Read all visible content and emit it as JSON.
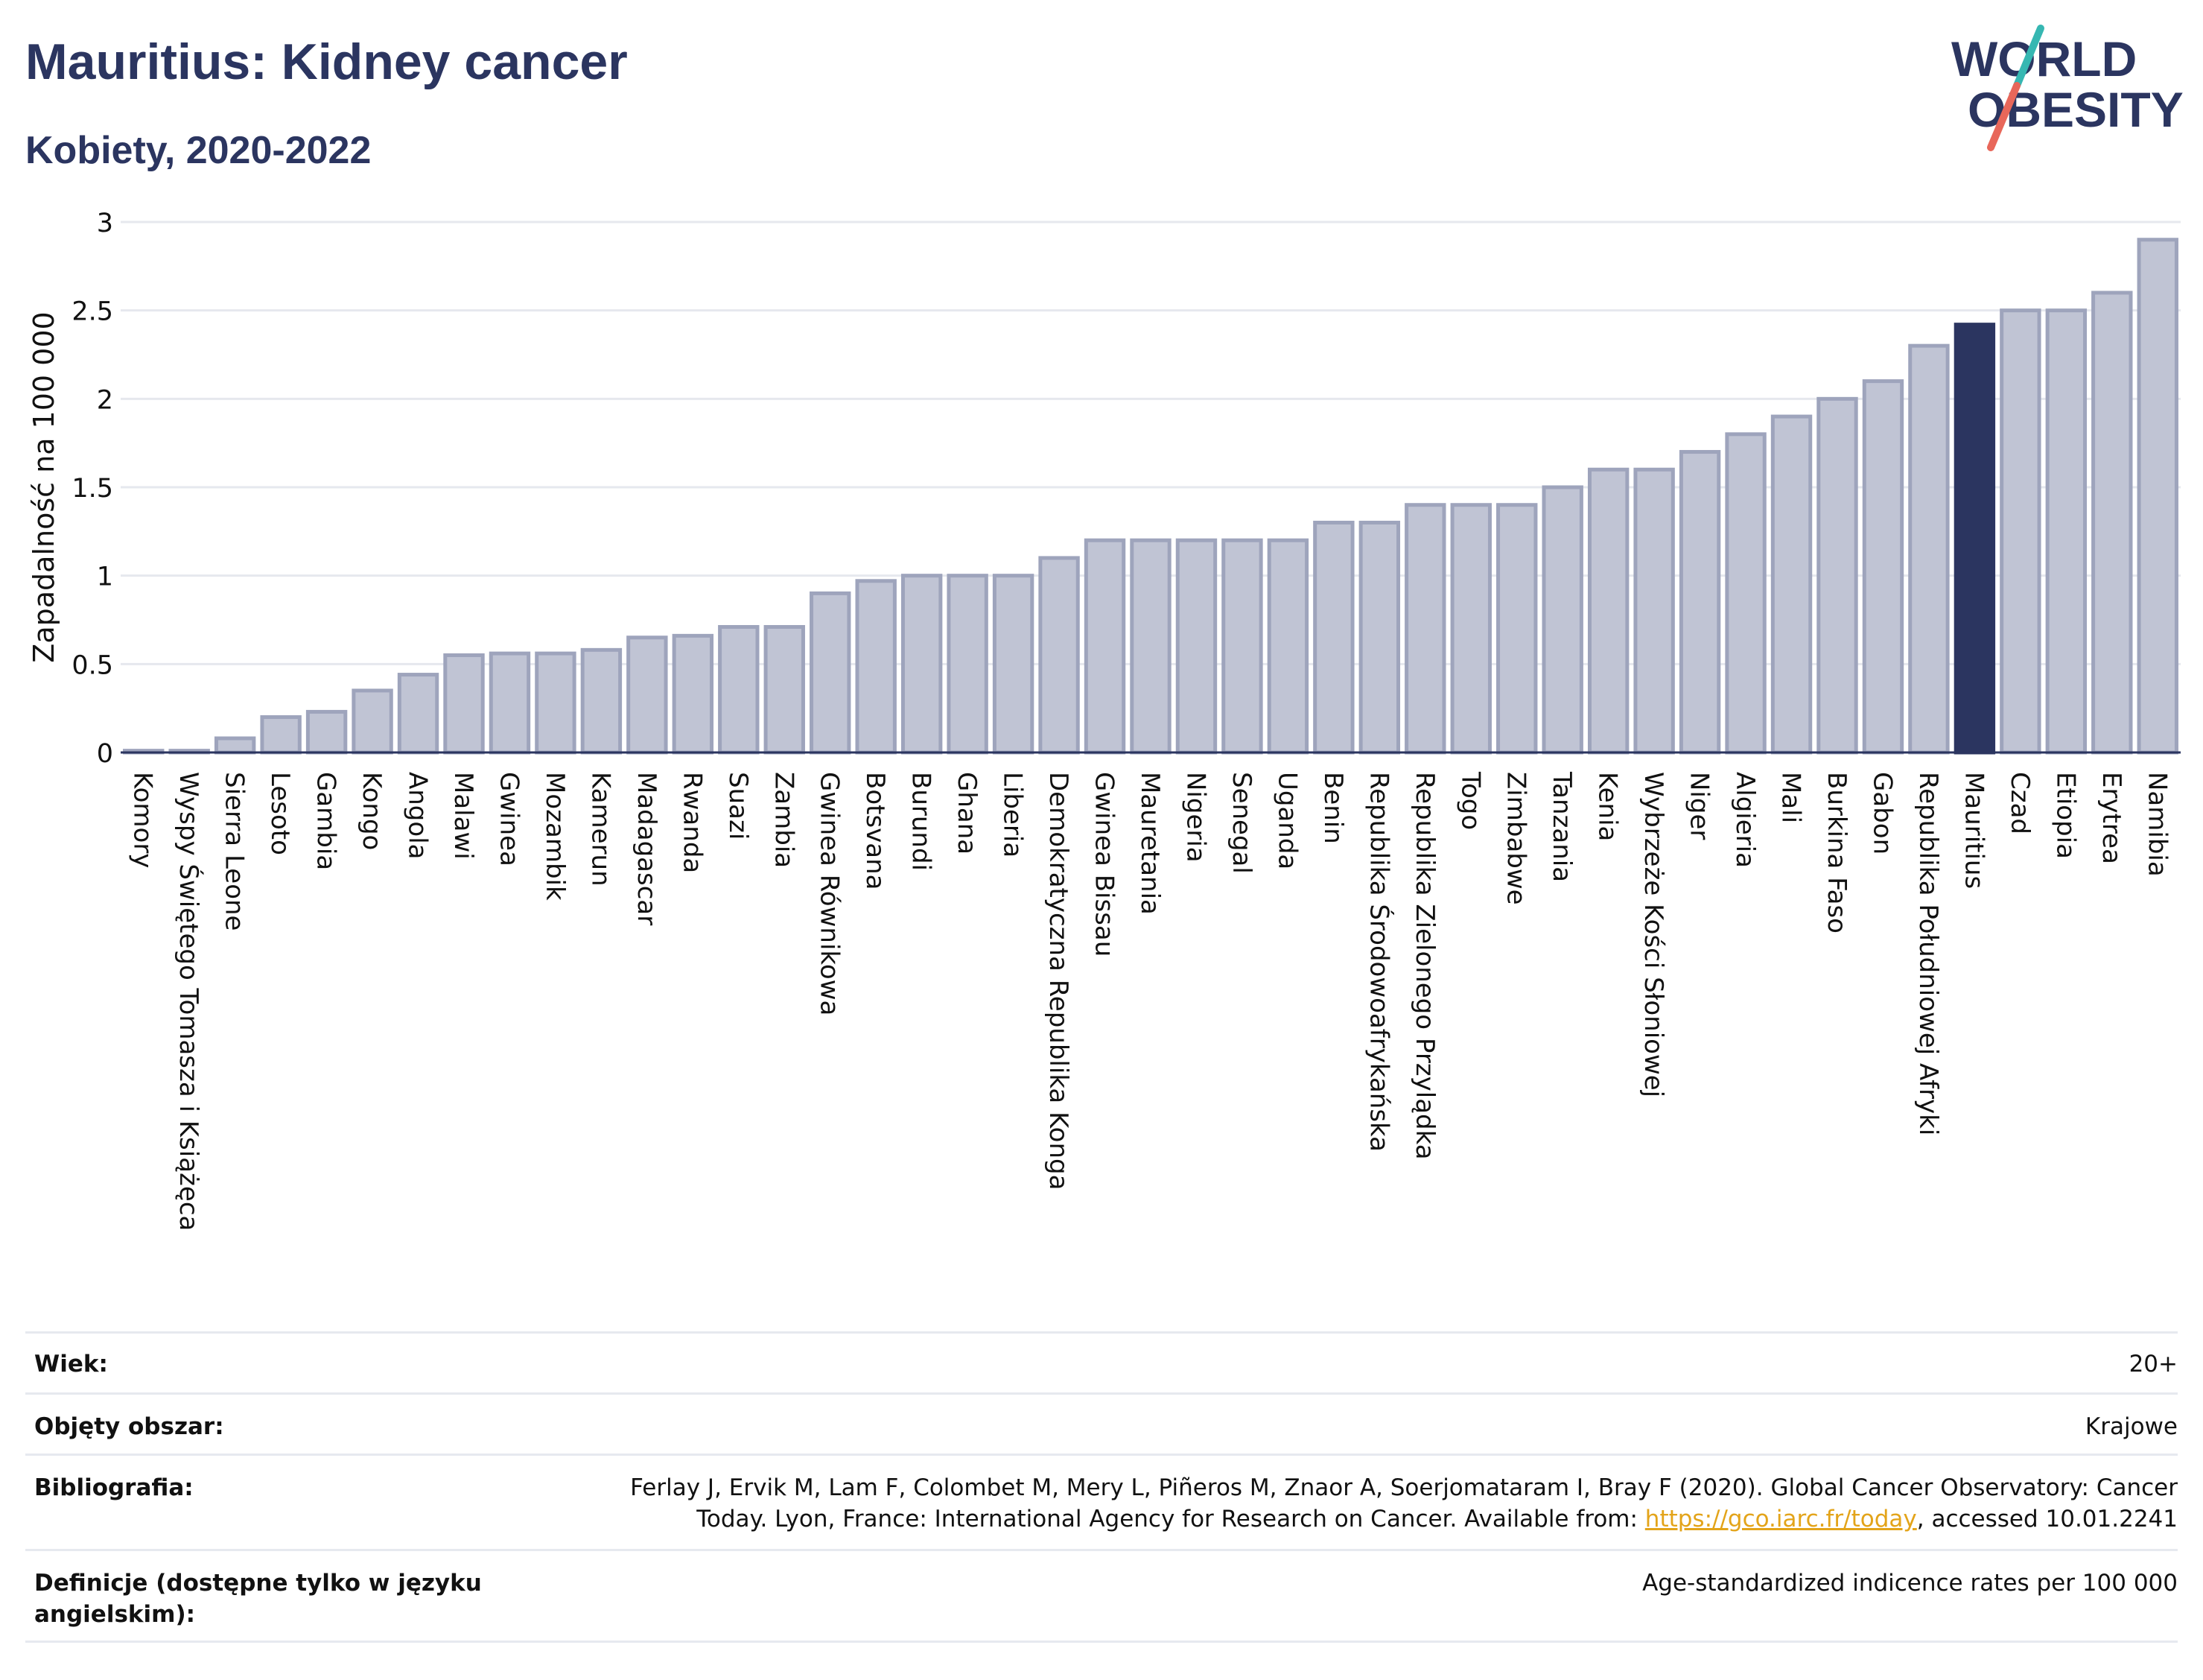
{
  "header": {
    "title": "Mauritius: Kidney cancer",
    "subtitle": "Kobiety, 2020-2022",
    "logo_line1": "WORLD",
    "logo_line2": "OBESITY"
  },
  "colors": {
    "bar": "#c0c4d4",
    "bar_border": "#9ea4bc",
    "highlight": "#2b3560",
    "title": "#2b3560",
    "logo_teal": "#36b7b2",
    "logo_red": "#e8675a"
  },
  "chart_data": {
    "type": "bar",
    "title": "Mauritius: Kidney cancer",
    "subtitle": "Kobiety, 2020-2022",
    "xlabel": "",
    "ylabel": "Zapadalność na 100 000",
    "ylim": [
      0,
      3
    ],
    "yticks": [
      0,
      0.5,
      1,
      1.5,
      2,
      2.5,
      3
    ],
    "grid": true,
    "highlight": "Mauritius",
    "categories": [
      "Komory",
      "Wyspy Świętego Tomasza i Książęca",
      "Sierra Leone",
      "Lesoto",
      "Gambia",
      "Kongo",
      "Angola",
      "Malawi",
      "Gwinea",
      "Mozambik",
      "Kamerun",
      "Madagascar",
      "Rwanda",
      "Suazi",
      "Zambia",
      "Gwinea Równikowa",
      "Botsvana",
      "Burundi",
      "Ghana",
      "Liberia",
      "Demokratyczna Republika Konga",
      "Gwinea Bissau",
      "Mauretania",
      "Nigeria",
      "Senegal",
      "Uganda",
      "Benin",
      "Republika Środowoafrykańska",
      "Republika Zielonego Przylądka",
      "Togo",
      "Zimbabwe",
      "Tanzania",
      "Kenia",
      "Wybrzeże Kości Słoniowej",
      "Niger",
      "Algieria",
      "Mali",
      "Burkina Faso",
      "Gabon",
      "Republika Południowej Afryki",
      "Mauritius",
      "Czad",
      "Etiopia",
      "Erytrea",
      "Namibia"
    ],
    "values": [
      0.01,
      0.01,
      0.08,
      0.2,
      0.23,
      0.35,
      0.44,
      0.55,
      0.56,
      0.56,
      0.58,
      0.65,
      0.66,
      0.71,
      0.71,
      0.9,
      0.97,
      1.0,
      1.0,
      1.0,
      1.1,
      1.2,
      1.2,
      1.2,
      1.2,
      1.2,
      1.3,
      1.3,
      1.4,
      1.4,
      1.4,
      1.5,
      1.6,
      1.6,
      1.7,
      1.8,
      1.9,
      2.0,
      2.1,
      2.3,
      2.42,
      2.5,
      2.5,
      2.6,
      2.9
    ]
  },
  "footer": {
    "rows": [
      {
        "label": "Wiek:",
        "value": "20+"
      },
      {
        "label": "Objęty obszar:",
        "value": "Krajowe"
      },
      {
        "label": "Bibliografia:",
        "value_line1": "Ferlay J, Ervik M, Lam F, Colombet M, Mery L, Piñeros M, Znaor A, Soerjomataram I, Bray F (2020). Global Cancer Observatory: Cancer",
        "value_line2_pre": "Today. Lyon, France: International Agency for Research on Cancer. Available from: ",
        "value_link": "https://gco.iarc.fr/today",
        "value_line2_post": ", accessed 10.01.2241"
      },
      {
        "label_line1": "Definicje (dostępne tylko w języku",
        "label_line2": "angielskim):",
        "value": "Age-standardized indicence rates per 100 000"
      }
    ]
  }
}
